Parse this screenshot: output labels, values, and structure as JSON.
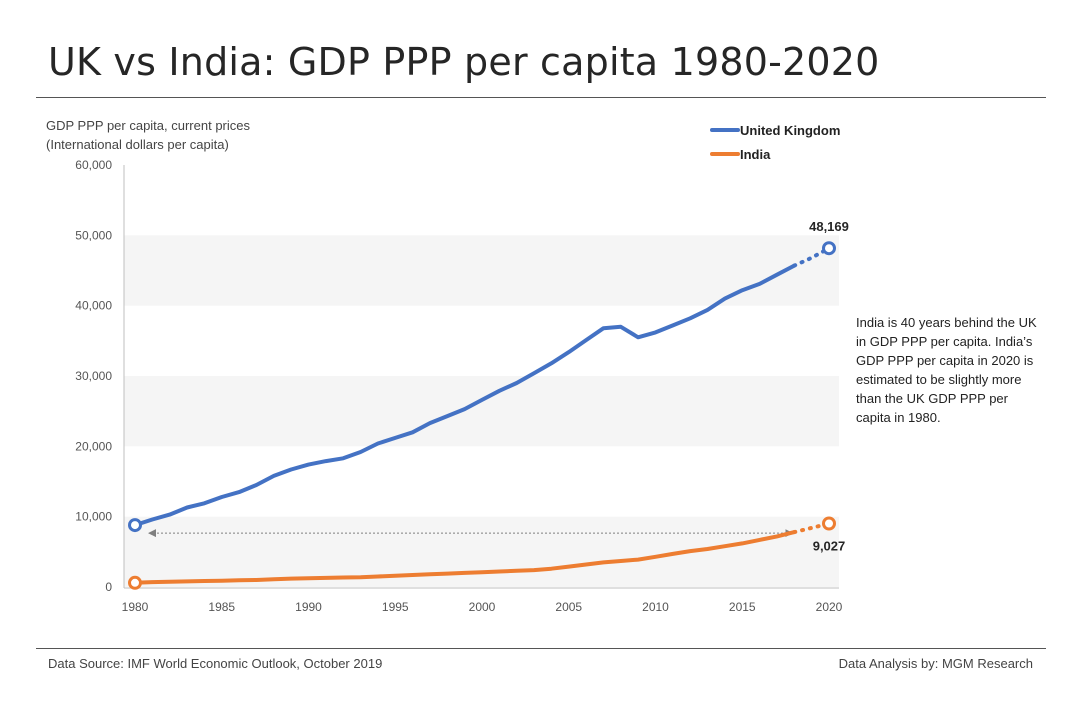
{
  "header": {
    "title": "UK vs India: GDP PPP per capita 1980-2020"
  },
  "axis_caption": {
    "line1": "GDP PPP per capita, current prices",
    "line2": "(International dollars per capita)"
  },
  "annotation": {
    "text": "India is 40 years behind the UK in GDP PPP per capita. India’s GDP PPP per capita in 2020 is estimated to be slightly more than the UK GDP PPP per capita in 1980."
  },
  "footer": {
    "source": "Data Source:  IMF World Economic Outlook,  October 2019",
    "analysis": "Data Analysis by: MGM Research"
  },
  "colors": {
    "uk": "#4472C4",
    "india": "#ED7D31",
    "band": "#F5F5F5",
    "arrow": "#7F7F7F"
  },
  "chart_data": {
    "type": "line",
    "title": "UK vs India: GDP PPP per capita 1980-2020",
    "xlabel": "",
    "ylabel": "GDP PPP per capita, current prices (International dollars per capita)",
    "xlim": [
      1980,
      2020
    ],
    "ylim": [
      0,
      60000
    ],
    "x_ticks": [
      "1980",
      "1985",
      "1990",
      "1995",
      "2000",
      "2005",
      "2010",
      "2015",
      "2020"
    ],
    "x_tick_values": [
      1980,
      1985,
      1990,
      1995,
      2000,
      2005,
      2010,
      2015,
      2020
    ],
    "y_ticks": [
      "0",
      "10,000",
      "20,000",
      "30,000",
      "40,000",
      "50,000",
      "60,000"
    ],
    "y_tick_values": [
      0,
      10000,
      20000,
      30000,
      40000,
      50000,
      60000
    ],
    "x": [
      1980,
      1981,
      1982,
      1983,
      1984,
      1985,
      1986,
      1987,
      1988,
      1989,
      1990,
      1991,
      1992,
      1993,
      1994,
      1995,
      1996,
      1997,
      1998,
      1999,
      2000,
      2001,
      2002,
      2003,
      2004,
      2005,
      2006,
      2007,
      2008,
      2009,
      2010,
      2011,
      2012,
      2013,
      2014,
      2015,
      2016,
      2017,
      2018,
      2019,
      2020
    ],
    "series": [
      {
        "name": "United Kingdom",
        "key": "uk",
        "values": [
          8800,
          9600,
          10300,
          11300,
          11900,
          12800,
          13500,
          14500,
          15800,
          16700,
          17400,
          17900,
          18300,
          19200,
          20400,
          21200,
          22000,
          23300,
          24300,
          25300,
          26600,
          27900,
          29000,
          30400,
          31800,
          33400,
          35100,
          36800,
          37000,
          35500,
          36200,
          37200,
          38200,
          39400,
          41000,
          42200,
          43100,
          44400,
          45700,
          46800,
          48169
        ],
        "projected_from": 2018,
        "end_label": "48,169"
      },
      {
        "name": "India",
        "key": "india",
        "values": [
          600,
          700,
          750,
          800,
          850,
          900,
          950,
          1000,
          1100,
          1200,
          1250,
          1300,
          1350,
          1400,
          1500,
          1600,
          1700,
          1800,
          1900,
          2000,
          2100,
          2200,
          2300,
          2400,
          2600,
          2900,
          3200,
          3500,
          3700,
          3900,
          4300,
          4700,
          5100,
          5400,
          5800,
          6200,
          6700,
          7200,
          7800,
          8400,
          9027
        ],
        "projected_from": 2018,
        "end_label": "9,027"
      }
    ],
    "legend": [
      {
        "label": "United Kingdom",
        "key": "uk"
      },
      {
        "label": "India",
        "key": "india"
      }
    ],
    "bands": [
      [
        0,
        10000
      ],
      [
        20000,
        30000
      ],
      [
        40000,
        50000
      ]
    ],
    "gap_arrow": {
      "from_year": 1980,
      "to_year": 2018,
      "value": 8800
    }
  }
}
